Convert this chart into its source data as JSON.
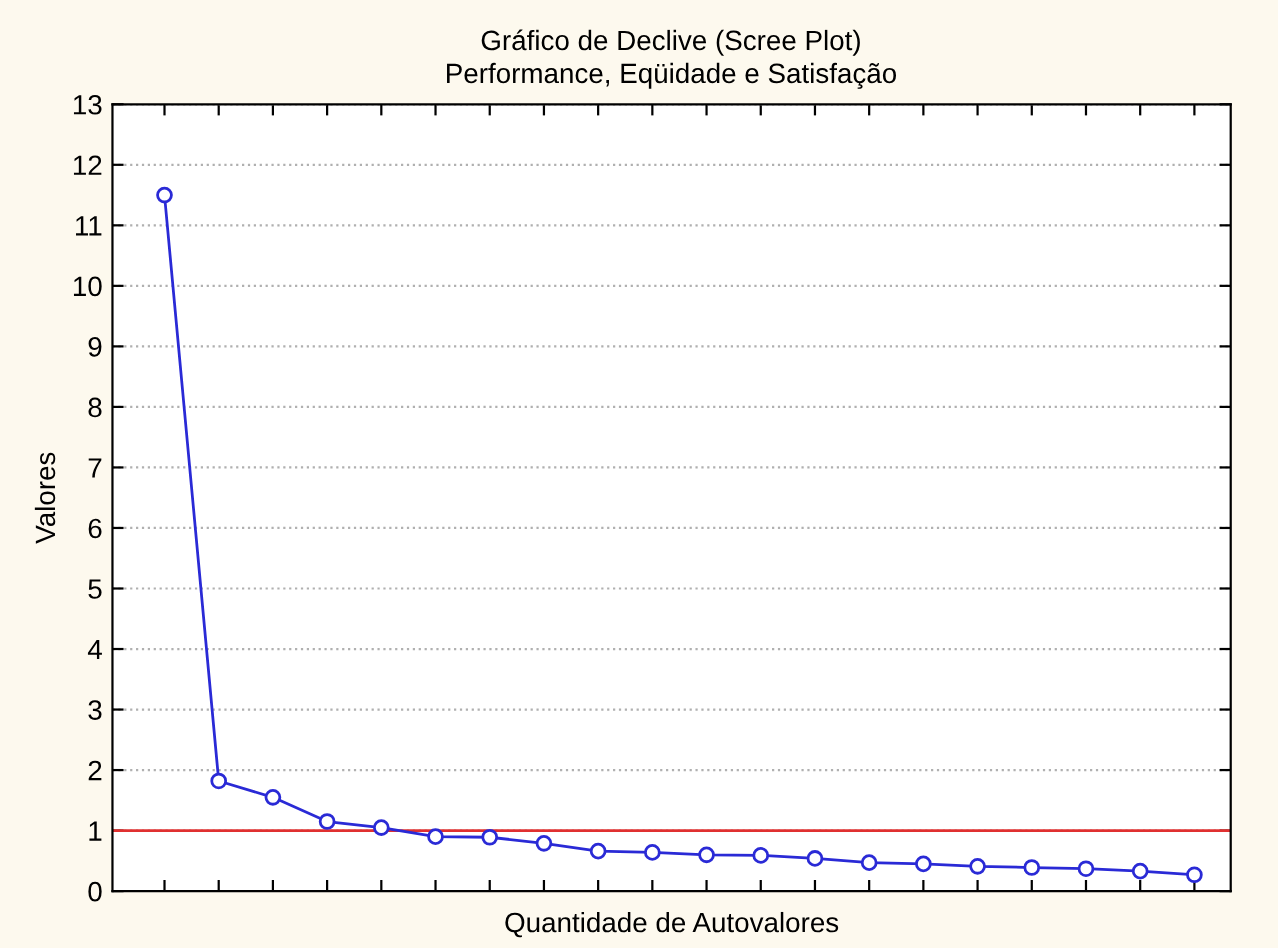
{
  "chart_data": {
    "type": "line",
    "title": "Gráfico de Declive (Scree Plot)",
    "subtitle": "Performance, Eqüidade e Satisfação",
    "xlabel": "Quantidade de Autovalores",
    "ylabel": "Valores",
    "categories": [
      null,
      null,
      null,
      null,
      null,
      null,
      null,
      null,
      null,
      null,
      null,
      null,
      null,
      null,
      null,
      null,
      null,
      null,
      null,
      null
    ],
    "series": [
      {
        "color": "#2a2ad6",
        "values": [
          11.5,
          1.82,
          1.55,
          1.15,
          1.05,
          0.9,
          0.89,
          0.79,
          0.66,
          0.64,
          0.6,
          0.59,
          0.54,
          0.47,
          0.45,
          0.41,
          0.39,
          0.37,
          0.33,
          0.27
        ]
      }
    ],
    "ylim": [
      0,
      13
    ],
    "yticks": [
      0,
      1,
      2,
      3,
      4,
      5,
      6,
      7,
      8,
      9,
      10,
      11,
      12,
      13
    ],
    "ref_lines": [
      {
        "axis": "y",
        "value": 1,
        "label": null,
        "color": "#e03030"
      }
    ],
    "grid": "y",
    "marker": "circle",
    "line_style": "solid",
    "legend": false
  }
}
